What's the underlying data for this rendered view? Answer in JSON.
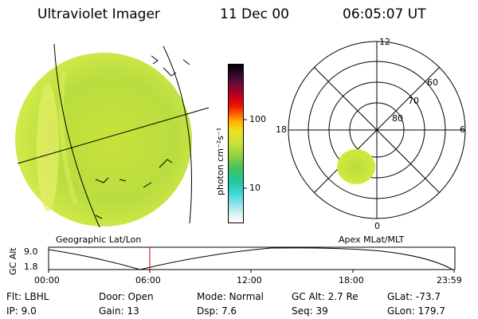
{
  "header": {
    "instrument": "Ultraviolet Imager",
    "date": "11 Dec 00",
    "time": "06:05:07 UT"
  },
  "colorbar": {
    "unit_label": "photon cm⁻²s⁻¹",
    "tick_labels": [
      "100",
      "10"
    ]
  },
  "polar_plot": {
    "labels": {
      "top": "12",
      "left": "18",
      "right": "6",
      "bottom": "0"
    },
    "lat_labels": [
      "60",
      "70",
      "80"
    ],
    "caption": "Apex MLat/MLT"
  },
  "globe": {
    "caption": "Geographic Lat/Lon"
  },
  "alt_plot": {
    "ylabel": "GC Alt",
    "yticks": [
      "9.0",
      "1.8"
    ],
    "xticks": [
      "00:00",
      "06:00",
      "12:00",
      "18:00",
      "23:59"
    ]
  },
  "info": {
    "flt": "Flt:  LBHL",
    "ip": "IP:  9.0",
    "door": "Door:  Open",
    "gain": "Gain:  13",
    "mode": "Mode:  Normal",
    "dsp": "Dsp:      7.6",
    "gcalt": "GC Alt:  2.7 Re",
    "seq": "Seq:  39",
    "glat": "GLat:  -73.7",
    "glon": "GLon:  179.7"
  }
}
